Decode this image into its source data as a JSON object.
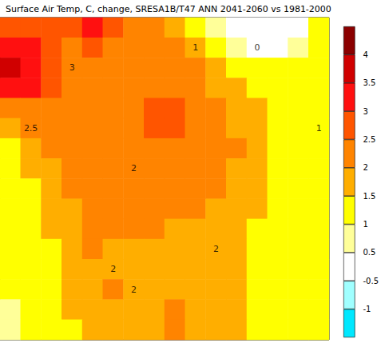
{
  "chart_data": {
    "type": "heatmap",
    "title": "Surface Air Temp, C, change, SRESA1B/T47 ANN 2041-2060 vs 1981-2000",
    "cells": [
      [
        2.7,
        2.8,
        2.5,
        2.6,
        3.2,
        2.7,
        2.3,
        2.0,
        1.8,
        1.2,
        0.8,
        0.2,
        0.0,
        0.1,
        0.4,
        1.2
      ],
      [
        3.0,
        3.1,
        2.6,
        2.4,
        2.6,
        2.4,
        2.2,
        2.1,
        2.0,
        1.6,
        1.2,
        0.8,
        0.3,
        0.4,
        0.8,
        1.3
      ],
      [
        3.6,
        3.2,
        2.8,
        2.3,
        2.2,
        2.3,
        2.2,
        2.1,
        2.1,
        2.0,
        1.7,
        1.3,
        1.0,
        1.1,
        1.3,
        1.4
      ],
      [
        3.3,
        3.0,
        2.5,
        2.2,
        2.1,
        2.2,
        2.1,
        2.2,
        2.3,
        2.1,
        1.9,
        1.6,
        1.4,
        1.3,
        1.4,
        1.4
      ],
      [
        2.4,
        2.3,
        2.2,
        2.1,
        2.0,
        2.1,
        2.2,
        2.6,
        2.5,
        2.2,
        2.0,
        1.7,
        1.5,
        1.4,
        1.3,
        1.3
      ],
      [
        1.8,
        2.0,
        2.1,
        2.1,
        2.0,
        2.1,
        2.2,
        2.7,
        2.6,
        2.2,
        2.0,
        1.9,
        1.5,
        1.4,
        1.3,
        1.2
      ],
      [
        1.4,
        1.7,
        2.0,
        2.1,
        2.1,
        2.1,
        2.2,
        2.2,
        2.1,
        2.1,
        2.1,
        2.0,
        1.6,
        1.4,
        1.3,
        1.2
      ],
      [
        1.3,
        1.5,
        1.8,
        2.1,
        2.1,
        2.1,
        2.1,
        2.2,
        2.2,
        2.1,
        2.0,
        1.9,
        1.6,
        1.4,
        1.3,
        1.2
      ],
      [
        1.2,
        1.4,
        1.7,
        2.0,
        2.1,
        2.1,
        2.1,
        2.2,
        2.1,
        2.1,
        2.0,
        1.9,
        1.7,
        1.4,
        1.3,
        1.2
      ],
      [
        1.2,
        1.3,
        1.6,
        1.9,
        2.1,
        2.1,
        2.1,
        2.1,
        2.0,
        2.0,
        1.9,
        1.8,
        1.5,
        1.3,
        1.2,
        1.2
      ],
      [
        1.2,
        1.3,
        1.5,
        1.8,
        2.0,
        2.1,
        2.1,
        2.0,
        1.9,
        1.9,
        1.8,
        1.6,
        1.4,
        1.3,
        1.2,
        1.2
      ],
      [
        1.2,
        1.3,
        1.4,
        1.7,
        2.1,
        1.9,
        1.9,
        1.9,
        1.8,
        1.8,
        1.7,
        1.5,
        1.4,
        1.3,
        1.2,
        1.2
      ],
      [
        1.2,
        1.2,
        1.4,
        1.6,
        1.8,
        1.9,
        1.9,
        1.8,
        1.8,
        1.7,
        1.6,
        1.5,
        1.3,
        1.3,
        1.2,
        1.2
      ],
      [
        1.1,
        1.2,
        1.3,
        1.5,
        1.7,
        2.1,
        1.9,
        1.8,
        1.8,
        1.7,
        1.6,
        1.5,
        1.4,
        1.3,
        1.2,
        1.2
      ],
      [
        0.9,
        1.1,
        1.3,
        1.5,
        1.7,
        1.8,
        1.8,
        1.9,
        2.1,
        1.7,
        1.6,
        1.5,
        1.4,
        1.3,
        1.3,
        1.2
      ],
      [
        0.8,
        1.0,
        1.2,
        1.4,
        1.6,
        1.7,
        1.8,
        1.8,
        2.1,
        1.9,
        1.6,
        1.5,
        1.4,
        1.3,
        1.3,
        1.3
      ]
    ],
    "colorbar": {
      "levels": [
        -1,
        -0.5,
        0.5,
        1,
        1.5,
        2,
        2.5,
        3,
        3.5,
        4
      ],
      "colors": [
        "#00e8ff",
        "#a0ffff",
        "#ffffff",
        "#ffff99",
        "#ffff00",
        "#ffae00",
        "#ff8400",
        "#ff5500",
        "#ff1010",
        "#d00000",
        "#8b0000"
      ]
    },
    "contour_labels": [
      {
        "text": "3",
        "col": 3,
        "row": 2
      },
      {
        "text": "2.5",
        "col": 1,
        "row": 5
      },
      {
        "text": "1",
        "col": 9,
        "row": 1
      },
      {
        "text": "0",
        "col": 12,
        "row": 1
      },
      {
        "text": "1",
        "col": 15,
        "row": 5
      },
      {
        "text": "2",
        "col": 6,
        "row": 7
      },
      {
        "text": "2",
        "col": 10,
        "row": 11
      },
      {
        "text": "2",
        "col": 5,
        "row": 12
      },
      {
        "text": "2",
        "col": 6,
        "row": 13
      }
    ]
  }
}
